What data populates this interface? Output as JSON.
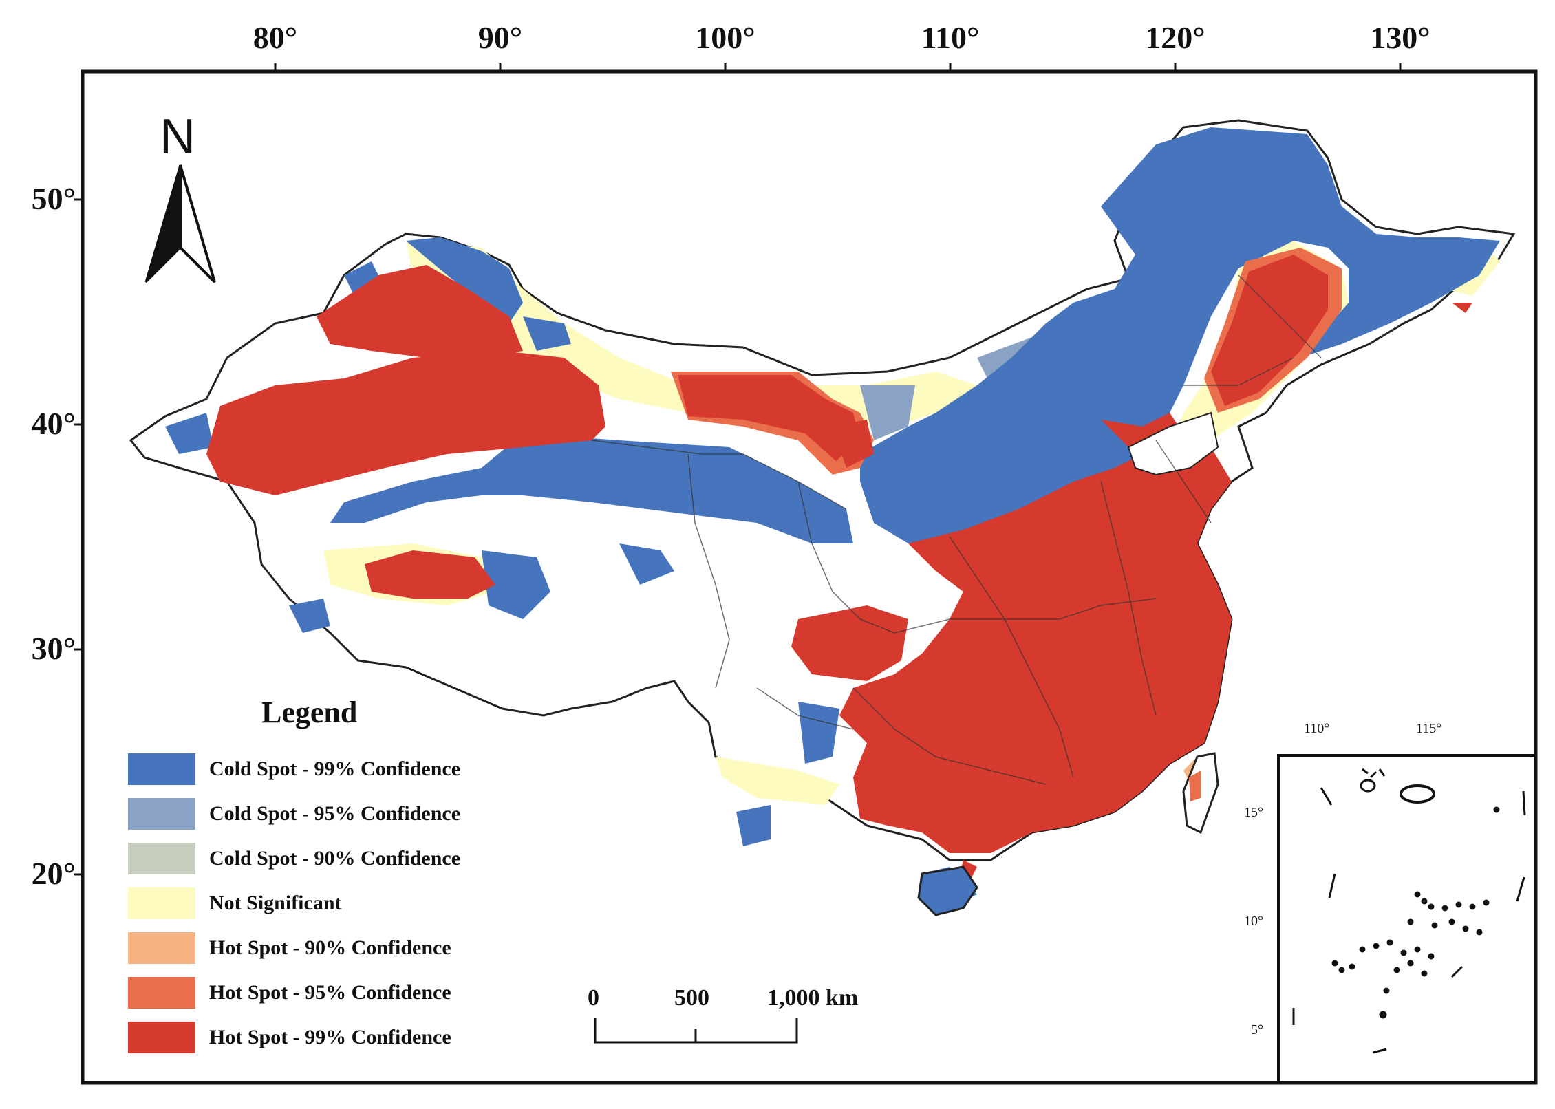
{
  "graticule": {
    "longitude_labels": [
      "80°",
      "90°",
      "100°",
      "110°",
      "120°",
      "130°"
    ],
    "latitude_labels": [
      "50°",
      "40°",
      "30°",
      "20°"
    ]
  },
  "north_arrow": {
    "label": "N"
  },
  "legend": {
    "title": "Legend",
    "items": [
      {
        "label": "Cold Spot - 99% Confidence",
        "color": "#4675bd"
      },
      {
        "label": "Cold Spot - 95% Confidence",
        "color": "#8aa2c4"
      },
      {
        "label": "Cold Spot - 90% Confidence",
        "color": "#c5cdbf"
      },
      {
        "label": "Not Significant",
        "color": "#fdfbc0"
      },
      {
        "label": "Hot Spot - 90% Confidence",
        "color": "#f7b483"
      },
      {
        "label": "Hot Spot - 95% Confidence",
        "color": "#ea6e4c"
      },
      {
        "label": "Hot Spot - 99% Confidence",
        "color": "#d63a2e"
      }
    ]
  },
  "scale_bar": {
    "ticks": [
      "0",
      "500",
      "1,000 km"
    ]
  },
  "inset": {
    "longitude_labels": [
      "110°",
      "115°"
    ],
    "latitude_labels": [
      "15°",
      "10°",
      "5°"
    ]
  },
  "colors": {
    "cold99": "#4675bd",
    "cold95": "#8aa2c4",
    "cold90": "#c5cdbf",
    "ns": "#fdfbc0",
    "hot90": "#f7b483",
    "hot95": "#ea6e4c",
    "hot99": "#d63a2e",
    "border": "#222222"
  }
}
